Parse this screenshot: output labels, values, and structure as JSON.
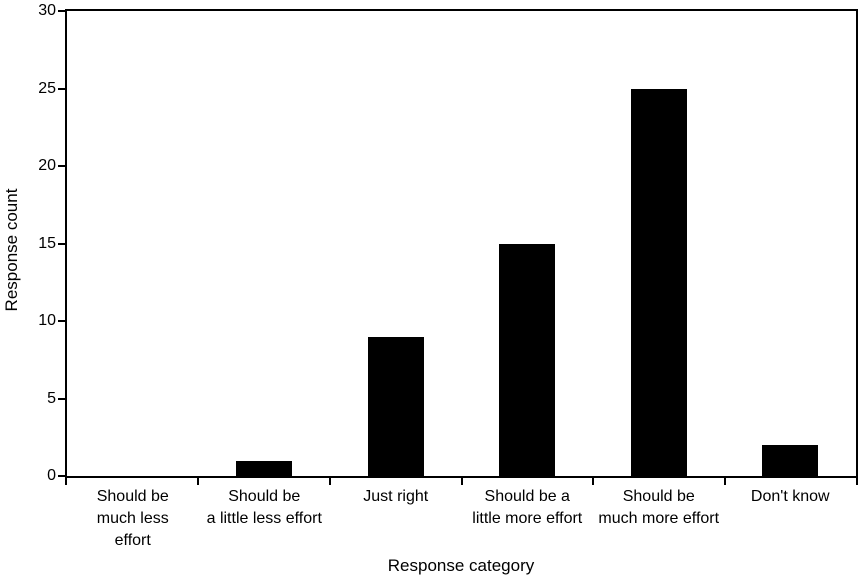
{
  "chart_data": {
    "type": "bar",
    "title": "",
    "xlabel": "Response category",
    "ylabel": "Response count",
    "categories": [
      "Should be much less effort",
      "Should be a little less effort",
      "Just right",
      "Should be a little more effort",
      "Should be much more effort",
      "Don't know"
    ],
    "category_label_lines": [
      [
        "Should be",
        "much less",
        "effort"
      ],
      [
        "Should be",
        "a little less effort"
      ],
      [
        "Just right"
      ],
      [
        "Should be a",
        "little more effort"
      ],
      [
        "Should be",
        "much more effort"
      ],
      [
        "Don't know"
      ]
    ],
    "values": [
      0,
      1,
      9,
      15,
      25,
      2
    ],
    "ylim": [
      0,
      30
    ],
    "yticks": [
      0,
      5,
      10,
      15,
      20,
      25,
      30
    ],
    "grid": false,
    "legend": null,
    "bar_color": "#000000",
    "background_color": "#ffffff",
    "axis_color": "#000000"
  }
}
